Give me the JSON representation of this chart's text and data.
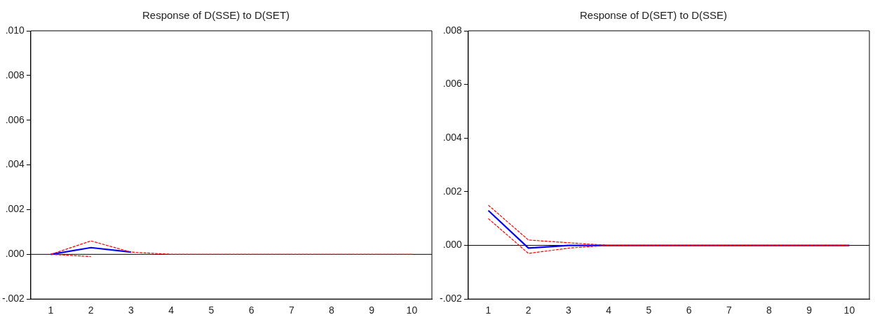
{
  "chart_data": [
    {
      "type": "line",
      "title": "Response of D(SSE) to D(SET)",
      "categories": [
        "1",
        "2",
        "3",
        "4",
        "5",
        "6",
        "7",
        "8",
        "9",
        "10"
      ],
      "series": [
        {
          "color": "#ff0000",
          "line_style": "dashed",
          "values": [
            0,
            0.0006,
            0.0001,
            0,
            0,
            0,
            0,
            0,
            0,
            0
          ]
        },
        {
          "color": "#ff0000",
          "line_style": "dashed",
          "values": [
            0,
            -0.0001,
            null,
            null,
            null,
            null,
            null,
            null,
            null,
            null
          ]
        },
        {
          "color": "#0000ff",
          "line_style": "solid",
          "values": [
            0,
            0.0003,
            0.0001,
            null,
            null,
            null,
            null,
            null,
            null,
            null
          ]
        }
      ],
      "ylim": [
        -0.002,
        0.01
      ],
      "yticks": [
        {
          "value": -0.002,
          "label": "-.002"
        },
        {
          "value": 0,
          "label": ".000"
        },
        {
          "value": 0.002,
          "label": ".002"
        },
        {
          "value": 0.004,
          "label": ".004"
        },
        {
          "value": 0.006,
          "label": ".006"
        },
        {
          "value": 0.008,
          "label": ".008"
        },
        {
          "value": 0.01,
          "label": ".010"
        }
      ],
      "ref_lines": [
        {
          "axis": "y",
          "value": 0,
          "color": "#000000"
        }
      ],
      "grid": false,
      "legend": false,
      "marker": "none"
    },
    {
      "type": "line",
      "title": "Response of D(SET) to D(SSE)",
      "categories": [
        "1",
        "2",
        "3",
        "4",
        "5",
        "6",
        "7",
        "8",
        "9",
        "10"
      ],
      "series": [
        {
          "color": "#ff0000",
          "line_style": "dashed",
          "values": [
            0.0015,
            0.0002,
            0.0001,
            0,
            0,
            0,
            0,
            0,
            0,
            0
          ]
        },
        {
          "color": "#ff0000",
          "line_style": "dashed",
          "values": [
            0.001,
            -0.0003,
            -0.0001,
            0,
            0,
            0,
            0,
            0,
            0,
            0
          ]
        },
        {
          "color": "#0000ff",
          "line_style": "solid",
          "values": [
            0.0013,
            -0.0001,
            0,
            0,
            0,
            0,
            0,
            0,
            0,
            0
          ]
        }
      ],
      "ylim": [
        -0.002,
        0.008
      ],
      "yticks": [
        {
          "value": -0.002,
          "label": "-.002"
        },
        {
          "value": 0,
          "label": ".000"
        },
        {
          "value": 0.002,
          "label": ".002"
        },
        {
          "value": 0.004,
          "label": ".004"
        },
        {
          "value": 0.006,
          "label": ".006"
        },
        {
          "value": 0.008,
          "label": ".008"
        }
      ],
      "ref_lines": [
        {
          "axis": "y",
          "value": 0,
          "color": "#000000"
        }
      ],
      "grid": false,
      "legend": false,
      "marker": "none"
    }
  ]
}
